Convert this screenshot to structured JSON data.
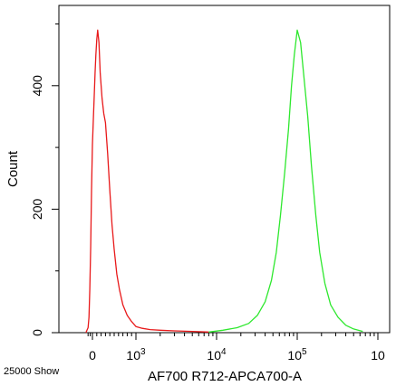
{
  "chart_data": {
    "type": "line",
    "title": "",
    "xlabel": "AF700 R712-APCA700-A",
    "ylabel": "Count",
    "x_scale": "biexponential",
    "xlim": [
      -150,
      1000000
    ],
    "ylim": [
      0,
      530
    ],
    "x_ticks": [
      {
        "value": 0,
        "label": "0"
      },
      {
        "value": 1000,
        "label": "10",
        "sup": "3"
      },
      {
        "value": 10000,
        "label": "10",
        "sup": "4"
      },
      {
        "value": 100000,
        "label": "10",
        "sup": "5"
      },
      {
        "value": 1000000,
        "label": "10",
        "sup": ""
      }
    ],
    "y_ticks": [
      {
        "value": 0,
        "label": "0"
      },
      {
        "value": 200,
        "label": "200"
      },
      {
        "value": 400,
        "label": "400"
      }
    ],
    "grid": false,
    "legend": "none",
    "footnote": "25000 Show",
    "series": [
      {
        "color": "#e8191a",
        "x": [
          -150,
          -100,
          -80,
          -60,
          -40,
          -20,
          0,
          20,
          40,
          60,
          80,
          100,
          120,
          150,
          180,
          220,
          260,
          300,
          350,
          400,
          450,
          500,
          560,
          620,
          700,
          800,
          900,
          1000,
          1200,
          1500,
          2000,
          3000,
          5000,
          8000
        ],
        "y": [
          0,
          8,
          25,
          70,
          140,
          230,
          305,
          345,
          380,
          420,
          450,
          475,
          490,
          470,
          420,
          380,
          355,
          340,
          290,
          230,
          175,
          135,
          95,
          70,
          45,
          28,
          18,
          10,
          7,
          5,
          4,
          3,
          2,
          1
        ]
      },
      {
        "color": "#2ee82e",
        "x": [
          8000,
          12000,
          18000,
          25000,
          32000,
          40000,
          48000,
          55000,
          62000,
          70000,
          78000,
          85000,
          92000,
          100000,
          110000,
          120000,
          135000,
          150000,
          170000,
          190000,
          220000,
          260000,
          320000,
          400000,
          500000,
          650000
        ],
        "y": [
          1,
          4,
          8,
          15,
          28,
          50,
          85,
          130,
          190,
          260,
          330,
          400,
          450,
          490,
          470,
          420,
          350,
          270,
          190,
          130,
          80,
          45,
          25,
          12,
          6,
          2
        ]
      }
    ]
  }
}
